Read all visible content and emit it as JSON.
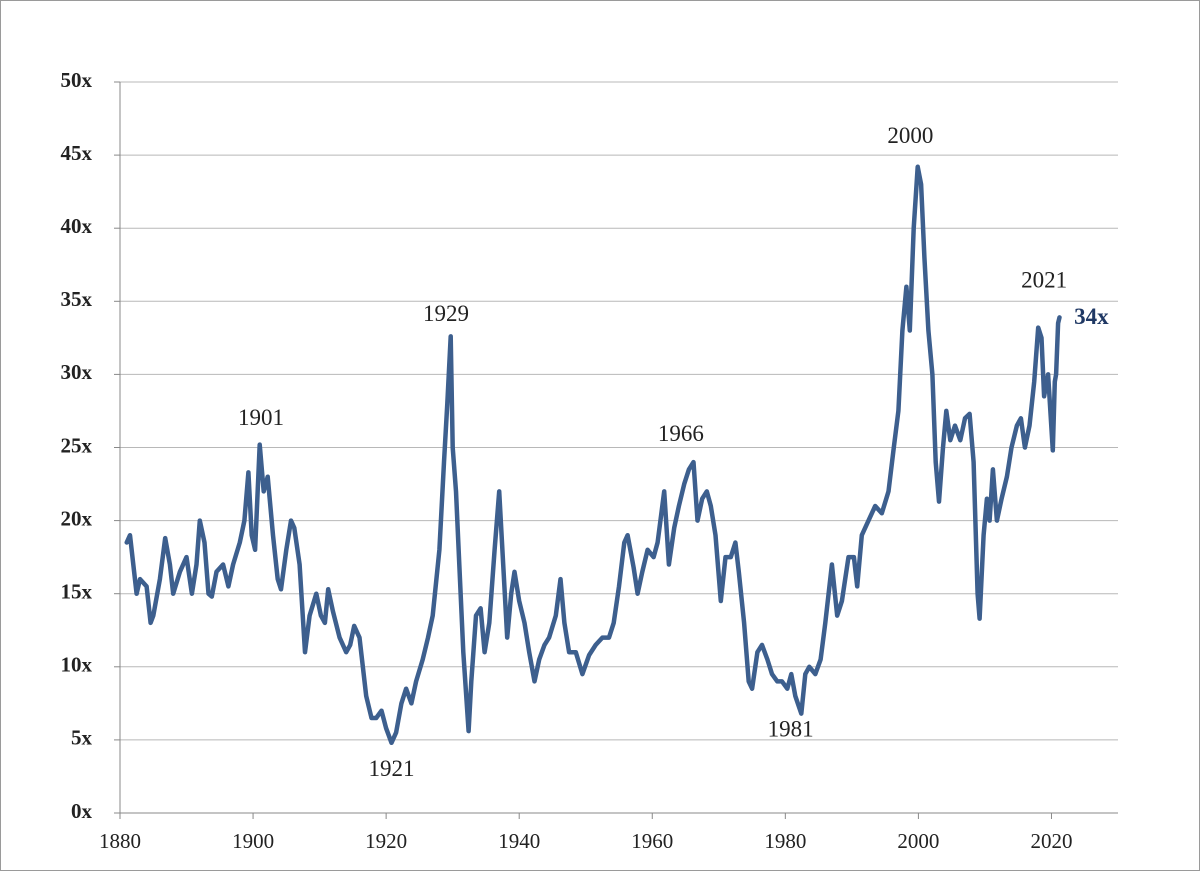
{
  "chart_data": {
    "type": "line",
    "color": "#3d5f8e",
    "grid": true,
    "xlim": [
      1880,
      2030
    ],
    "xticks": [
      1880,
      1900,
      1920,
      1940,
      1960,
      1980,
      2000,
      2020
    ],
    "ylim": [
      0,
      50
    ],
    "yticks": [
      {
        "value": 0,
        "label": "0x"
      },
      {
        "value": 5,
        "label": "5x"
      },
      {
        "value": 10,
        "label": "10x"
      },
      {
        "value": 15,
        "label": "15x"
      },
      {
        "value": 20,
        "label": "20x"
      },
      {
        "value": 25,
        "label": "25x"
      },
      {
        "value": 30,
        "label": "30x"
      },
      {
        "value": 35,
        "label": "35x"
      },
      {
        "value": 40,
        "label": "40x"
      },
      {
        "value": 45,
        "label": "45x"
      },
      {
        "value": 50,
        "label": "50x"
      }
    ],
    "x": [
      1881,
      1881.5,
      1882,
      1882.5,
      1883,
      1884,
      1884.6,
      1885,
      1886,
      1886.8,
      1887.5,
      1888,
      1889,
      1890,
      1890.8,
      1891.5,
      1892,
      1892.7,
      1893.3,
      1893.8,
      1894.5,
      1895.5,
      1896.3,
      1897,
      1898,
      1898.7,
      1899.3,
      1899.8,
      1900.3,
      1901,
      1901.6,
      1902.2,
      1903,
      1903.7,
      1904.2,
      1905,
      1905.7,
      1906.2,
      1907,
      1907.8,
      1908.5,
      1909.5,
      1910.2,
      1910.8,
      1911.3,
      1912,
      1913,
      1914,
      1914.6,
      1915.2,
      1916,
      1917,
      1917.8,
      1918.5,
      1919.3,
      1920,
      1920.8,
      1921.5,
      1922.3,
      1923,
      1923.8,
      1924.5,
      1925.5,
      1926.3,
      1927,
      1928,
      1928.7,
      1929.2,
      1929.7,
      1930,
      1930.5,
      1931,
      1931.6,
      1932.4,
      1932.8,
      1933.5,
      1934.2,
      1934.8,
      1935.5,
      1936.3,
      1937,
      1937.6,
      1938.2,
      1938.8,
      1939.3,
      1940,
      1940.8,
      1941.5,
      1942.3,
      1943,
      1943.8,
      1944.5,
      1945.5,
      1946.2,
      1946.8,
      1947.5,
      1948.5,
      1949.5,
      1950.5,
      1951.5,
      1952.5,
      1953.5,
      1954.2,
      1955,
      1955.8,
      1956.3,
      1957.2,
      1957.8,
      1958.5,
      1959.3,
      1960.2,
      1960.8,
      1961.8,
      1962.5,
      1963.3,
      1964,
      1964.8,
      1965.5,
      1966.2,
      1966.8,
      1967.5,
      1968.2,
      1968.8,
      1969.5,
      1970.3,
      1971,
      1971.8,
      1972.5,
      1973,
      1973.8,
      1974.5,
      1975,
      1975.8,
      1976.5,
      1977.3,
      1978,
      1978.8,
      1979.5,
      1980.3,
      1980.9,
      1981.5,
      1982.4,
      1983,
      1983.6,
      1984.5,
      1985.3,
      1986,
      1987,
      1987.8,
      1988.5,
      1989.5,
      1990.3,
      1990.8,
      1991.5,
      1992.5,
      1993.5,
      1994.5,
      1995.5,
      1996.3,
      1997,
      1997.6,
      1998.2,
      1998.7,
      1999.3,
      1999.9,
      2000.4,
      2000.9,
      2001.5,
      2002.1,
      2002.6,
      2003.1,
      2003.7,
      2004.2,
      2004.8,
      2005.5,
      2006.3,
      2007,
      2007.7,
      2008.3,
      2008.9,
      2009.2,
      2009.8,
      2010.3,
      2010.7,
      2011.2,
      2011.8,
      2012.5,
      2013.3,
      2014,
      2014.8,
      2015.4,
      2016,
      2016.7,
      2017.4,
      2018,
      2018.5,
      2018.9,
      2019.5,
      2020.2,
      2020.5,
      2020.7,
      2021,
      2021.2
    ],
    "values": [
      18.5,
      19,
      17,
      15,
      16,
      15.5,
      13,
      13.5,
      16,
      18.8,
      17,
      15,
      16.5,
      17.5,
      15,
      17,
      20,
      18.5,
      15,
      14.8,
      16.5,
      17,
      15.5,
      17,
      18.5,
      20,
      23.3,
      19,
      18,
      25.2,
      22,
      23,
      19,
      16,
      15.3,
      18,
      20,
      19.5,
      17,
      11,
      13.5,
      15,
      13.5,
      13,
      15.3,
      13.8,
      12,
      11,
      11.5,
      12.8,
      12,
      8,
      6.5,
      6.5,
      7,
      5.8,
      4.8,
      5.5,
      7.5,
      8.5,
      7.5,
      9,
      10.5,
      12,
      13.5,
      18,
      24,
      28,
      32.6,
      25,
      22,
      17,
      11,
      5.6,
      9,
      13.5,
      14,
      11,
      13,
      18,
      22,
      17,
      12,
      15,
      16.5,
      14.5,
      13,
      11,
      9,
      10.5,
      11.5,
      12,
      13.5,
      16,
      13,
      11,
      11,
      9.5,
      10.8,
      11.5,
      12,
      12,
      13,
      15.5,
      18.5,
      19,
      16.8,
      15,
      16.5,
      18,
      17.5,
      18.5,
      22,
      17,
      19.5,
      21,
      22.5,
      23.5,
      24,
      20,
      21.5,
      22,
      21,
      19,
      14.5,
      17.5,
      17.5,
      18.5,
      16.5,
      13,
      9,
      8.5,
      11,
      11.5,
      10.5,
      9.5,
      9,
      9,
      8.5,
      9.5,
      8,
      6.8,
      9.5,
      10,
      9.5,
      10.5,
      13,
      17,
      13.5,
      14.5,
      17.5,
      17.5,
      15.5,
      19,
      20,
      21,
      20.5,
      22,
      25,
      27.5,
      33,
      36,
      33,
      40,
      44.2,
      43,
      38,
      33,
      30,
      24,
      21.3,
      25,
      27.5,
      25.5,
      26.5,
      25.5,
      27,
      27.3,
      24,
      15,
      13.3,
      19,
      21.5,
      20,
      23.5,
      20,
      21.5,
      23,
      25,
      26.5,
      27,
      25,
      26.5,
      29.5,
      33.2,
      32.5,
      28.5,
      30,
      24.8,
      29.5,
      30,
      33.5,
      33.9
    ],
    "annotations": [
      {
        "text": "1901",
        "x": 1901.2,
        "y": 26.9
      },
      {
        "text": "1921",
        "x": 1920.8,
        "y": 2.9
      },
      {
        "text": "1929",
        "x": 1929,
        "y": 34
      },
      {
        "text": "1966",
        "x": 1964.3,
        "y": 25.8
      },
      {
        "text": "1981",
        "x": 1980.8,
        "y": 5.6
      },
      {
        "text": "2000",
        "x": 1998.8,
        "y": 46.2
      },
      {
        "text": "2021",
        "x": 2018.9,
        "y": 36.3
      },
      {
        "text": "34x",
        "x": 2026,
        "y": 33.8,
        "bold": true,
        "color": "#1f3864"
      }
    ]
  }
}
